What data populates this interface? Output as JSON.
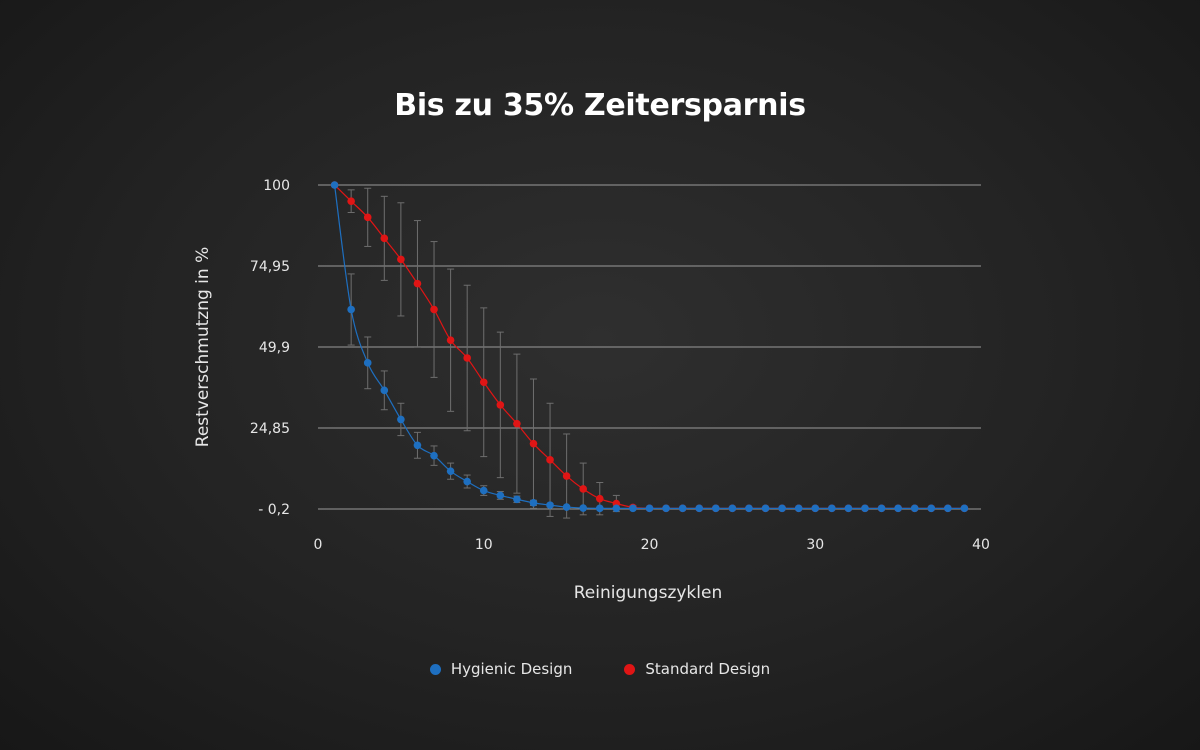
{
  "chart_data": {
    "type": "line",
    "title": "Bis zu 35% Zeitersparnis",
    "xlabel": "Reinigungszyklen",
    "ylabel": "Restverschmutzng in %",
    "xlim": [
      0,
      40
    ],
    "ylim": [
      -0.2,
      100
    ],
    "x_ticks": [
      0,
      10,
      20,
      30,
      40
    ],
    "y_ticks": [
      {
        "value": 100,
        "label": "100"
      },
      {
        "value": 74.95,
        "label": "74,95"
      },
      {
        "value": 49.9,
        "label": "49,9"
      },
      {
        "value": 24.85,
        "label": "24,85"
      },
      {
        "value": -0.2,
        "label": "- 0,2"
      }
    ],
    "grid": "horizontal",
    "legend_position": "bottom-center",
    "series": [
      {
        "name": "Hygienic Design",
        "color": "#1e6fc0",
        "x": [
          1,
          2,
          3,
          4,
          5,
          6,
          7,
          8,
          9,
          10,
          11,
          12,
          13,
          14,
          15,
          16,
          17,
          18,
          19,
          20,
          21,
          22,
          23,
          24,
          25,
          26,
          27,
          28,
          29,
          30,
          31,
          32,
          33,
          34,
          35,
          36,
          37,
          38,
          39
        ],
        "y": [
          100,
          61.5,
          45,
          36.5,
          27.5,
          19.5,
          16.3,
          11.5,
          8.3,
          5.5,
          4.0,
          2.8,
          1.7,
          1.0,
          0.4,
          0.1,
          0,
          0,
          0,
          0,
          0,
          0,
          0,
          0,
          0,
          0,
          0,
          0,
          0,
          0,
          0,
          0,
          0,
          0,
          0,
          0,
          0,
          0,
          0
        ],
        "err": [
          0,
          11,
          8,
          6,
          5,
          4,
          3,
          2.5,
          2,
          1.5,
          1.2,
          1,
          0.8,
          0.5,
          0.3,
          0.2,
          0.2,
          0.2,
          0.2,
          0.2,
          0.2,
          0.2,
          0.2,
          0.2,
          0.2,
          0.2,
          0.2,
          0.2,
          0.2,
          0.2,
          0.2,
          0.2,
          0.2,
          0.2,
          0.2,
          0.2,
          0.2,
          0.2,
          0.2
        ]
      },
      {
        "name": "Standard Design",
        "color": "#e01515",
        "x": [
          1,
          2,
          3,
          4,
          5,
          6,
          7,
          8,
          9,
          10,
          11,
          12,
          13,
          14,
          15,
          16,
          17,
          18,
          19,
          20,
          21,
          22,
          23,
          24,
          25,
          26,
          27,
          28,
          29,
          30,
          31,
          32,
          33,
          34,
          35,
          36,
          37,
          38,
          39
        ],
        "y": [
          100,
          95,
          90,
          83.5,
          77,
          69.5,
          61.5,
          52,
          46.5,
          39,
          32,
          26.2,
          20,
          15,
          10,
          6,
          3,
          1.5,
          0.3,
          0,
          0,
          0,
          0,
          0,
          0,
          0,
          0,
          0,
          0,
          0,
          0,
          0,
          0,
          0,
          0,
          0,
          0,
          0,
          0
        ],
        "err": [
          0,
          3.5,
          9,
          13,
          17.5,
          19.5,
          21,
          22,
          22.5,
          23,
          22.5,
          21.5,
          20,
          17.5,
          13,
          8,
          5,
          2.5,
          0.5,
          0.2,
          0.2,
          0.2,
          0.2,
          0.2,
          0.2,
          0.2,
          0.2,
          0.2,
          0.2,
          0.2,
          0.2,
          0.2,
          0.2,
          0.2,
          0.2,
          0.2,
          0.2,
          0.2,
          0.2
        ]
      }
    ]
  }
}
